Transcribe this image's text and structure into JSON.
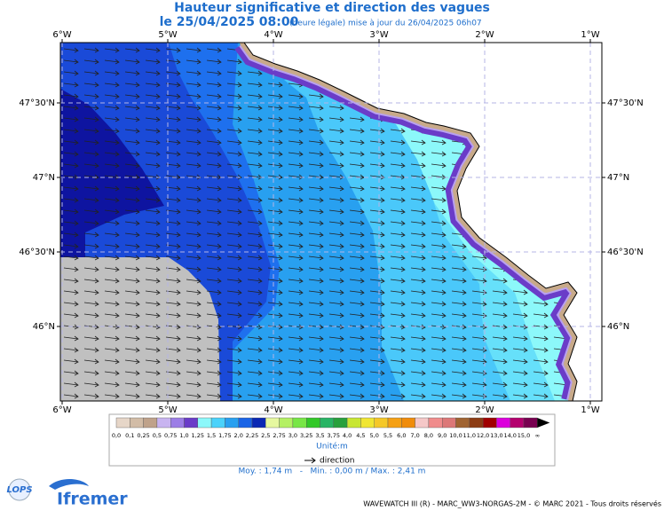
{
  "header": {
    "title": "Hauteur significative et direction des vagues",
    "date": "le 25/04/2025 08:00",
    "update": "(heure légale) mise à jour du 26/04/2025 06h07"
  },
  "map": {
    "longitudes": [
      "6°W",
      "5°W",
      "4°W",
      "3°W",
      "2°W",
      "1°W"
    ],
    "latitudes": [
      "47°30'N",
      "47°N",
      "46°30'N",
      "46°N"
    ]
  },
  "legend": {
    "labels": [
      "0,0",
      "0,1",
      "0,25",
      "0,5",
      "0,75",
      "1,0",
      "1,25",
      "1,5",
      "1,75",
      "2,0",
      "2,25",
      "2,5",
      "2,75",
      "3,0",
      "3,25",
      "3,5",
      "3,75",
      "4,0",
      "4,5",
      "5,0",
      "5,5",
      "6,0",
      "7,0",
      "8,0",
      "9,0",
      "10,0",
      "11,0",
      "12,0",
      "13,0",
      "14,0",
      "15,0",
      "∞"
    ],
    "unit": "Unité:m",
    "direction": "direction",
    "stats": "Moy. : 1,74 m   -   Min. : 0,00 m / Max. : 2,41 m"
  },
  "footer": {
    "logo1": "LOPS",
    "logo2": "Ifremer",
    "credit": "WAVEWATCH III (R) - MARC_WW3-NORGAS-2M - © MARC 2021 - Tous droits réservés"
  }
}
